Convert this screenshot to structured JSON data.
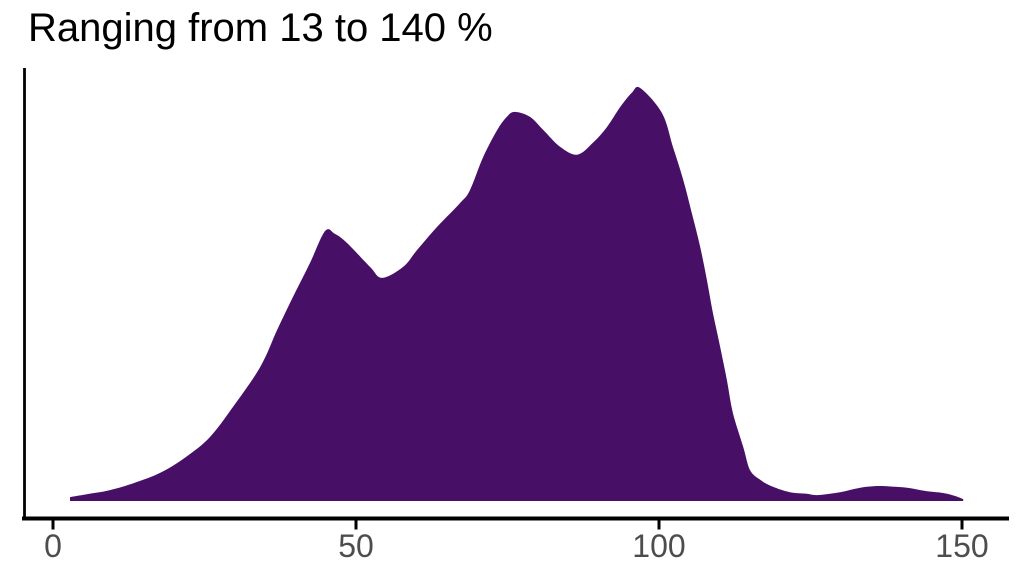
{
  "chart": {
    "title": "Ranging from 13 to 140 %"
  },
  "colors": {
    "background": "#ffffff",
    "density_fill": "#471066",
    "axis_line": "#000000",
    "tick_label": "#4d4d4d",
    "title_text": "#000000"
  },
  "chart_data": {
    "type": "area",
    "subtype": "kernel-density",
    "title": "Ranging from 13 to 140 %",
    "xlabel": "",
    "ylabel": "",
    "x_ticks": [
      0,
      50,
      100,
      150
    ],
    "xlim": [
      -5,
      158
    ],
    "y_axis_labels_shown": false,
    "grid": false,
    "legend": "none",
    "series": [
      {
        "name": "density",
        "x": [
          2.8,
          6,
          9.4,
          13.5,
          17.7,
          22,
          25.9,
          29.7,
          34.2,
          37.0,
          39.6,
          42.4,
          44.9,
          46.5,
          48.5,
          52.3,
          54.3,
          57.8,
          60.1,
          63.4,
          67.2,
          68.8,
          71.0,
          73.3,
          74.9,
          76.2,
          78.7,
          80.9,
          83.7,
          86.5,
          89.1,
          91.4,
          93.6,
          95.5,
          96.9,
          100.5,
          102.3,
          104.0,
          105.4,
          106.8,
          107.9,
          108.9,
          110.1,
          111.2,
          112.2,
          113.9,
          115.0,
          116.7,
          118.8,
          121.6,
          124.4,
          126.1,
          129.9,
          132.3,
          134.3,
          136.5,
          139.0,
          141.4,
          143.9,
          146.9,
          148.8,
          150.2
        ],
        "y_relative_density": [
          0.007,
          0.015,
          0.024,
          0.042,
          0.066,
          0.105,
          0.153,
          0.226,
          0.323,
          0.413,
          0.493,
          0.575,
          0.653,
          0.646,
          0.624,
          0.566,
          0.539,
          0.566,
          0.607,
          0.663,
          0.721,
          0.752,
          0.833,
          0.898,
          0.93,
          0.942,
          0.93,
          0.898,
          0.857,
          0.838,
          0.867,
          0.905,
          0.954,
          0.988,
          1.0,
          0.939,
          0.857,
          0.777,
          0.697,
          0.614,
          0.534,
          0.454,
          0.371,
          0.291,
          0.211,
          0.129,
          0.073,
          0.049,
          0.032,
          0.019,
          0.015,
          0.012,
          0.019,
          0.027,
          0.032,
          0.034,
          0.032,
          0.029,
          0.022,
          0.017,
          0.01,
          0.002
        ]
      }
    ]
  }
}
